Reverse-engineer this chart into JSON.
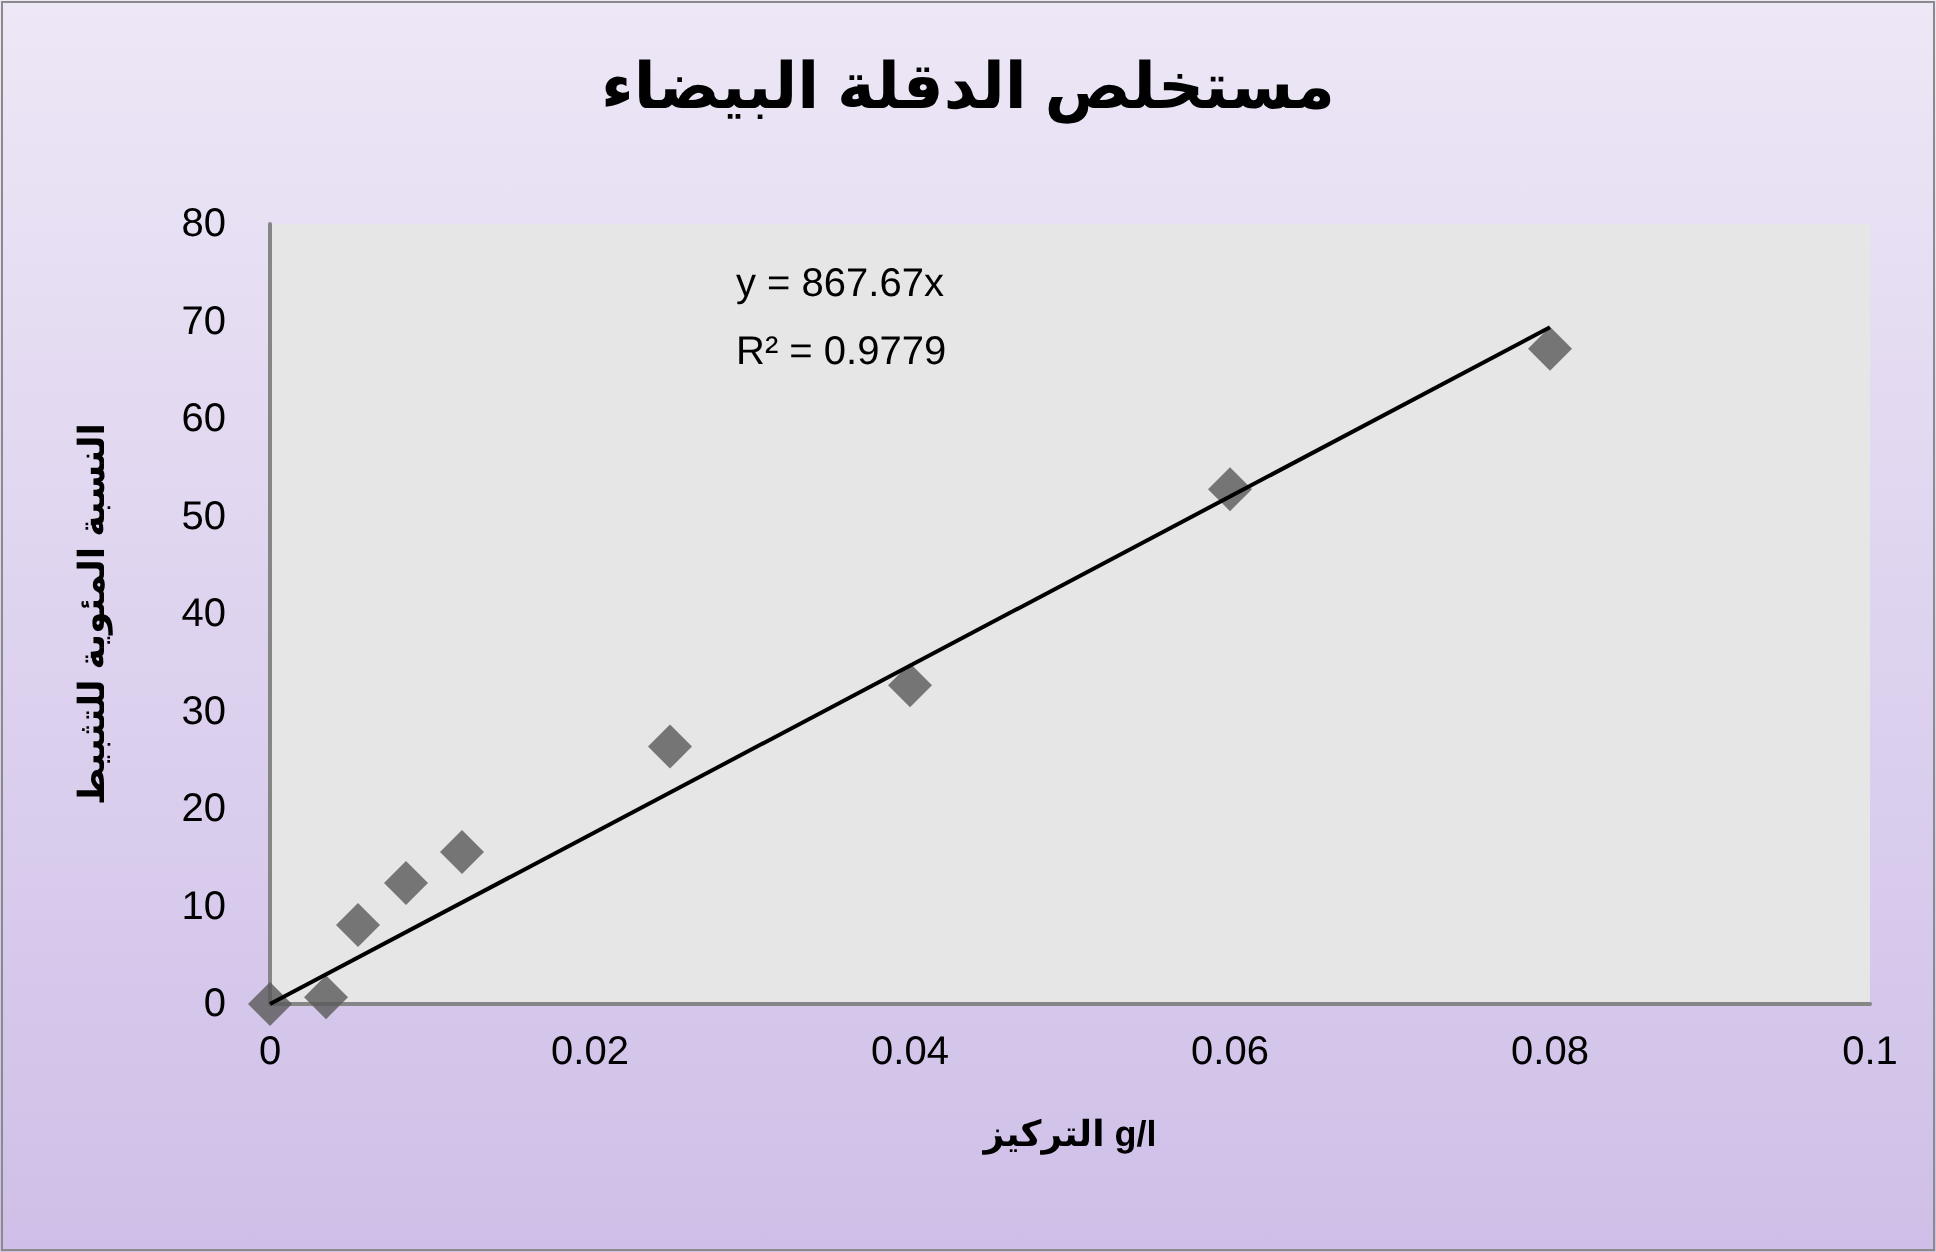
{
  "chart_data": {
    "type": "scatter",
    "title": "مستخلص الدقلة البيضاء",
    "xlabel": "التركيز g/l",
    "ylabel": "النسبة المئوية للتثبيط",
    "x": [
      0,
      0.0035,
      0.0055,
      0.0085,
      0.012,
      0.025,
      0.04,
      0.06,
      0.08
    ],
    "series": [
      {
        "color": "#595959",
        "values": [
          0,
          0.7,
          8.1,
          12.4,
          15.6,
          26.4,
          32.7,
          52.8,
          67.2
        ]
      },
      {
        "type": "line",
        "color": "#000000",
        "x": [
          0,
          0.08
        ],
        "values": [
          0,
          69.4
        ],
        "marker": "none"
      }
    ],
    "annotations": [
      "y = 867.67x",
      "R² = 0.9779"
    ],
    "xlim": [
      0,
      0.1
    ],
    "xticks": [
      0,
      0.02,
      0.04,
      0.06,
      0.08,
      0.1
    ],
    "ylim": [
      0,
      80
    ],
    "yticks": [
      0,
      10,
      20,
      30,
      40,
      50,
      60,
      70,
      80
    ],
    "marker": "diamond",
    "grid": false
  }
}
